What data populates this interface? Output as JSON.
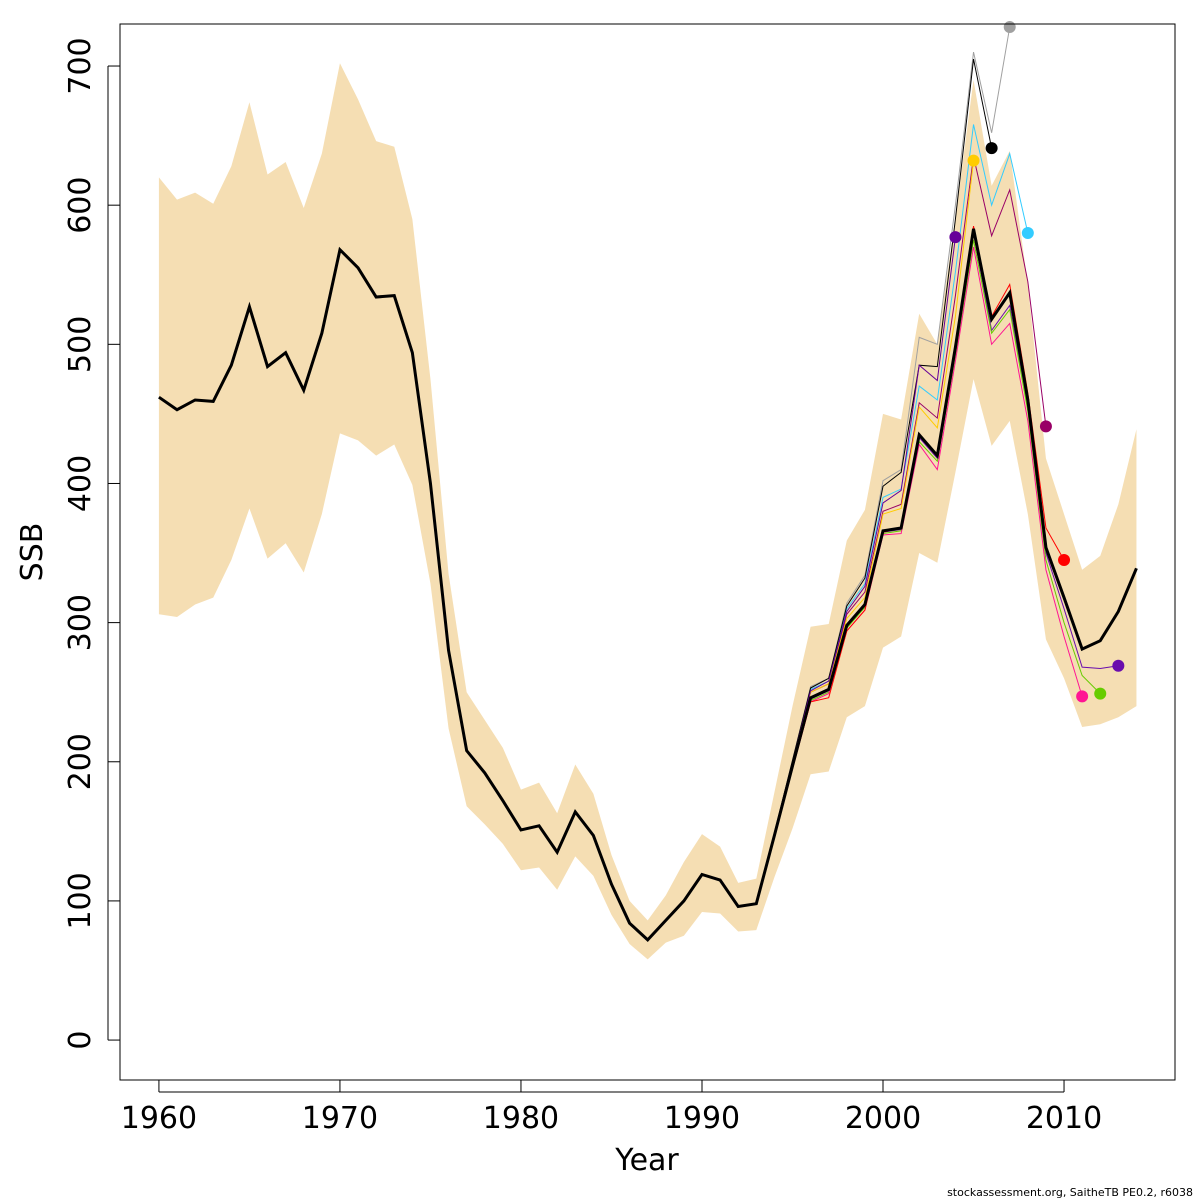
{
  "chart_data": {
    "type": "line",
    "xlabel": "Year",
    "ylabel": "SSB",
    "footer": "stockassessment.org, SaitheTB  PE0.2, r6038",
    "xlim": [
      1957.85,
      2016.13
    ],
    "ylim": [
      -28.7,
      730.2
    ],
    "xticks": [
      1960,
      1970,
      1980,
      1990,
      2000,
      2010
    ],
    "yticks": [
      0,
      100,
      200,
      300,
      400,
      500,
      600,
      700
    ],
    "band_color": "#f5deb3",
    "x": [
      1960,
      1961,
      1962,
      1963,
      1964,
      1965,
      1966,
      1967,
      1968,
      1969,
      1970,
      1971,
      1972,
      1973,
      1974,
      1975,
      1976,
      1977,
      1978,
      1979,
      1980,
      1981,
      1982,
      1983,
      1984,
      1985,
      1986,
      1987,
      1988,
      1989,
      1990,
      1991,
      1992,
      1993,
      1994,
      1995,
      1996,
      1997,
      1998,
      1999,
      2000,
      2001,
      2002,
      2003,
      2004,
      2005,
      2006,
      2007,
      2008,
      2009,
      2010,
      2011,
      2012,
      2013,
      2014
    ],
    "upper": [
      620,
      604,
      609,
      601,
      628,
      674,
      622,
      631,
      598,
      637,
      702,
      676,
      646,
      642,
      590,
      475,
      335,
      250,
      230,
      210,
      180,
      185,
      163,
      198,
      177,
      133,
      100,
      86,
      104,
      128,
      148,
      139,
      113,
      116,
      178,
      240,
      297,
      299,
      359,
      381,
      450,
      446,
      522,
      500,
      591,
      690,
      614,
      639,
      543,
      418,
      378,
      338,
      348,
      385,
      439
    ],
    "lower": [
      306,
      304,
      313,
      318,
      345,
      382,
      346,
      357,
      336,
      378,
      436,
      431,
      420,
      428,
      399,
      328,
      224,
      168,
      155,
      141,
      122,
      124,
      108,
      132,
      118,
      90,
      69,
      58,
      70,
      75,
      92,
      91,
      78,
      79,
      117,
      152,
      191,
      193,
      232,
      240,
      282,
      290,
      350,
      343,
      408,
      475,
      427,
      445,
      378,
      288,
      260,
      225,
      227,
      232,
      240
    ],
    "values": [
      462,
      453,
      460,
      459,
      485,
      527,
      484,
      494,
      467,
      508,
      568,
      555,
      534,
      535,
      494,
      400,
      280,
      208,
      192,
      172,
      151,
      154,
      135,
      164,
      147,
      112,
      84,
      72,
      86,
      100,
      119,
      115,
      96,
      98,
      147,
      197,
      246,
      252,
      298,
      313,
      366,
      368,
      435,
      420,
      498,
      583,
      518,
      537,
      460,
      354,
      318,
      281,
      287,
      308,
      339
    ],
    "color": "#000000",
    "series": [
      {
        "color": "#6a0dad",
        "x": [
          1994,
          1995,
          1996,
          1997,
          1998,
          1999,
          2000,
          2001,
          2002,
          2003,
          2004,
          2005,
          2006,
          2007,
          2008,
          2009,
          2010,
          2011,
          2012,
          2013
        ],
        "values": [
          147,
          196,
          245,
          251,
          297,
          312,
          365,
          367,
          433,
          418,
          495,
          580,
          510,
          528,
          455,
          350,
          310,
          268,
          267,
          269
        ]
      },
      {
        "color": "#66cc00",
        "x": [
          1994,
          1995,
          1996,
          1997,
          1998,
          1999,
          2000,
          2001,
          2002,
          2003,
          2004,
          2005,
          2006,
          2007,
          2008,
          2009,
          2010,
          2011,
          2012
        ],
        "values": [
          147,
          196,
          244,
          250,
          296,
          311,
          364,
          366,
          430,
          416,
          492,
          575,
          508,
          525,
          452,
          345,
          300,
          262,
          249
        ]
      },
      {
        "color": "#ff1493",
        "x": [
          1994,
          1995,
          1996,
          1997,
          1998,
          1999,
          2000,
          2001,
          2002,
          2003,
          2004,
          2005,
          2006,
          2007,
          2008,
          2009,
          2010,
          2011
        ],
        "values": [
          146,
          195,
          243,
          249,
          294,
          309,
          363,
          364,
          428,
          410,
          488,
          570,
          500,
          515,
          445,
          338,
          290,
          247
        ]
      },
      {
        "color": "#ff0000",
        "x": [
          1994,
          1995,
          1996,
          1997,
          1998,
          1999,
          2000,
          2001,
          2002,
          2003,
          2004,
          2005,
          2006,
          2007,
          2008,
          2009,
          2010
        ],
        "values": [
          146,
          195,
          243,
          246,
          294,
          309,
          365,
          368,
          436,
          420,
          500,
          585,
          520,
          543,
          465,
          368,
          345
        ]
      },
      {
        "color": "#990066",
        "x": [
          1994,
          1995,
          1996,
          1997,
          1998,
          1999,
          2000,
          2001,
          2002,
          2003,
          2004,
          2005,
          2006,
          2007,
          2008,
          2009
        ],
        "values": [
          148,
          199,
          250,
          256,
          306,
          322,
          380,
          385,
          458,
          447,
          535,
          635,
          578,
          611,
          545,
          441
        ]
      },
      {
        "color": "#33ccff",
        "x": [
          1994,
          1995,
          1996,
          1997,
          1998,
          1999,
          2000,
          2001,
          2002,
          2003,
          2004,
          2005,
          2006,
          2007,
          2008
        ],
        "values": [
          148,
          200,
          252,
          258,
          310,
          328,
          390,
          396,
          470,
          460,
          552,
          658,
          600,
          637,
          580
        ]
      },
      {
        "color": "#a0a0a0",
        "x": [
          1994,
          1995,
          1996,
          1997,
          1998,
          1999,
          2000,
          2001,
          2002,
          2003,
          2004,
          2005,
          2006,
          2007
        ],
        "values": [
          149,
          201,
          254,
          260,
          314,
          334,
          402,
          410,
          505,
          500,
          600,
          710,
          652,
          728
        ]
      },
      {
        "color": "#000000",
        "x": [
          1994,
          1995,
          1996,
          1997,
          1998,
          1999,
          2000,
          2001,
          2002,
          2003,
          2004,
          2005,
          2006
        ],
        "values": [
          149,
          201,
          253,
          260,
          312,
          332,
          398,
          408,
          485,
          484,
          590,
          705,
          641
        ]
      },
      {
        "color": "#ffcc00",
        "x": [
          1994,
          1995,
          1996,
          1997,
          1998,
          1999,
          2000,
          2001,
          2002,
          2003,
          2004,
          2005
        ],
        "values": [
          148,
          199,
          250,
          256,
          303,
          318,
          378,
          382,
          455,
          440,
          520,
          632
        ]
      },
      {
        "color": "#660099",
        "x": [
          1994,
          1995,
          1996,
          1997,
          1998,
          1999,
          2000,
          2001,
          2002,
          2003,
          2004
        ],
        "values": [
          148,
          199,
          251,
          258,
          308,
          326,
          386,
          395,
          485,
          474,
          577
        ]
      }
    ]
  }
}
